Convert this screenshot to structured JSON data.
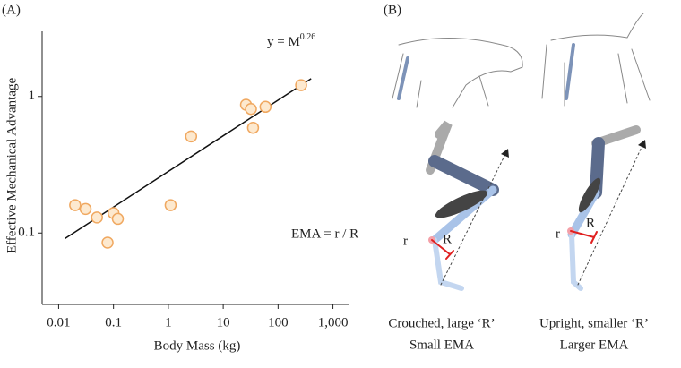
{
  "panel_a_label": "(A)",
  "panel_b_label": "(B)",
  "chart_data": {
    "type": "scatter",
    "xlabel": "Body Mass (kg)",
    "ylabel": "Effective Mechanical Advantage",
    "x": [
      0.02,
      0.031,
      0.05,
      0.1,
      0.12,
      0.078,
      1.1,
      2.6,
      26,
      32,
      59,
      35,
      263
    ],
    "values": [
      0.16,
      0.15,
      0.13,
      0.14,
      0.127,
      0.085,
      0.16,
      0.51,
      0.87,
      0.81,
      0.84,
      0.59,
      1.21
    ],
    "color": "#f0a860",
    "fit_line": {
      "x": [
        0.013,
        400
      ],
      "values": [
        0.091,
        1.35
      ]
    },
    "equation": {
      "base": "y = M",
      "exponent": "0.26"
    },
    "annotation": "EMA = r / R",
    "log_x": true,
    "log_y": true,
    "xlim": [
      0.005,
      2000
    ],
    "ylim": [
      0.03,
      3
    ],
    "xticks": [
      0.01,
      0.1,
      1,
      10,
      100,
      {
        "value": 1000,
        "label": "1,000"
      }
    ],
    "yticks": [
      0.1,
      1
    ]
  },
  "panel_b": {
    "left": {
      "r": "r",
      "R": "R",
      "caption": [
        "Crouched, large ‘R’",
        "Small EMA"
      ]
    },
    "right": {
      "r": "r",
      "R": "R",
      "caption": [
        "Upright, smaller ‘R’",
        "Larger EMA"
      ]
    }
  }
}
